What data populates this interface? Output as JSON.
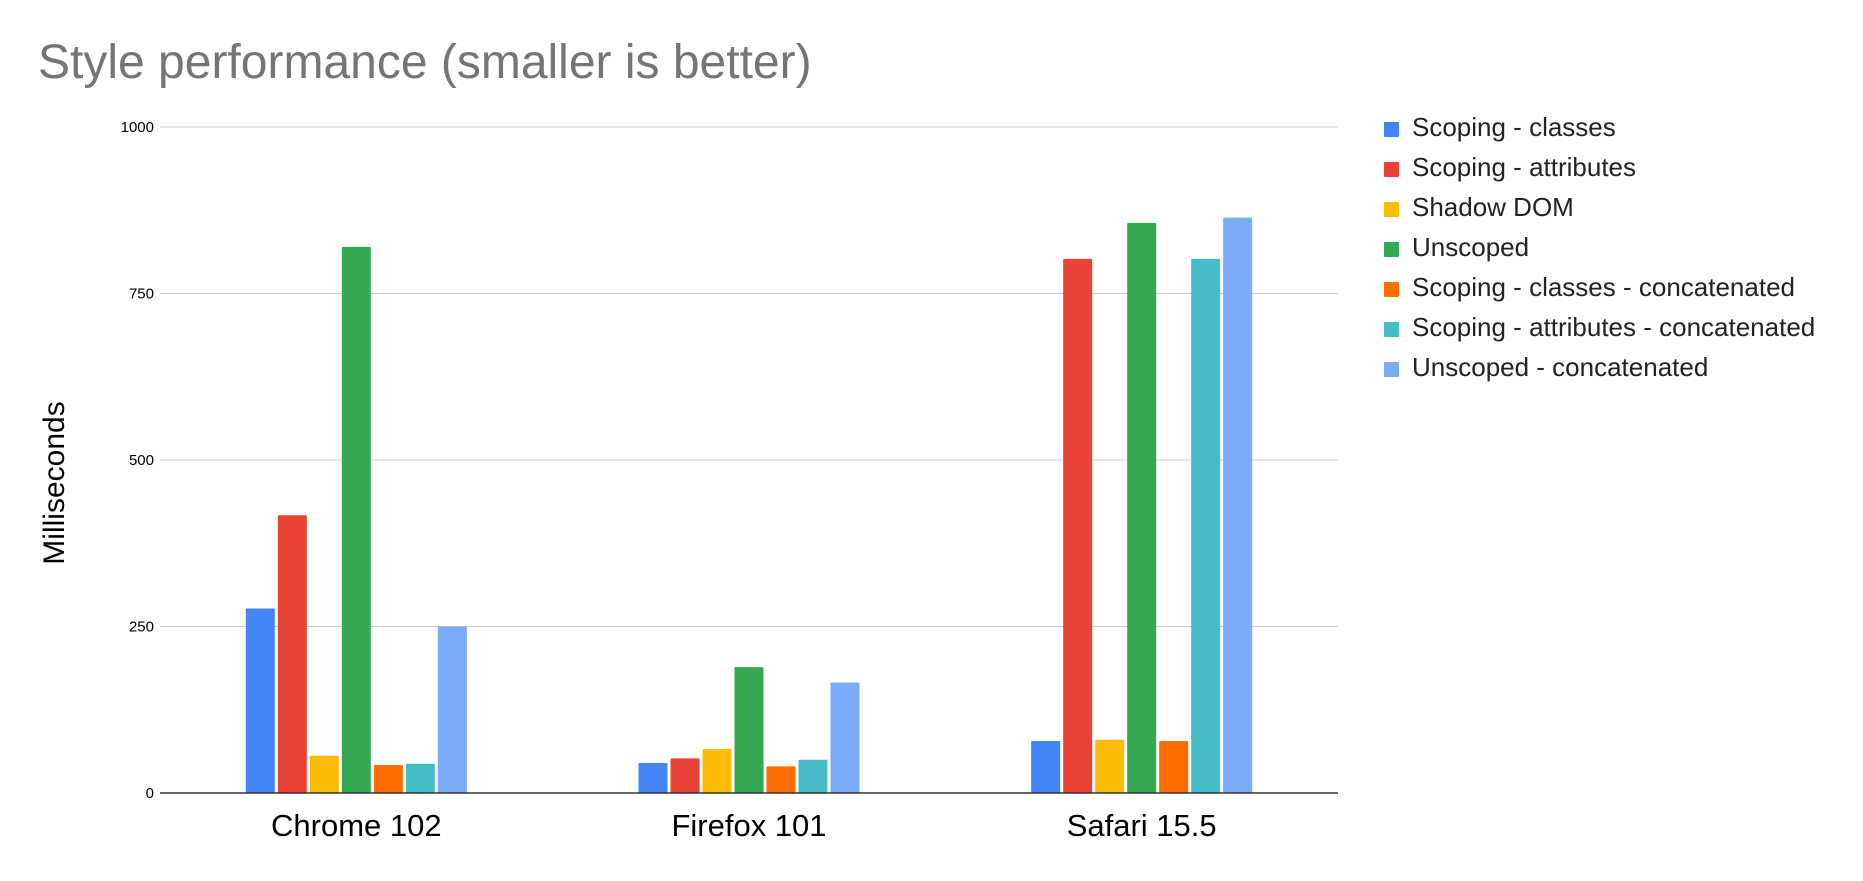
{
  "chart_data": {
    "type": "bar",
    "title": "Style performance (smaller is better)",
    "xlabel": "",
    "ylabel": "Milliseconds",
    "ylim": [
      0,
      1000
    ],
    "yticks": [
      0,
      250,
      500,
      750,
      1000
    ],
    "grid": true,
    "legend_position": "right",
    "categories": [
      "Chrome 102",
      "Firefox 101",
      "Safari 15.5"
    ],
    "series": [
      {
        "name": "Scoping - classes",
        "color": "#4285F4",
        "values": [
          277,
          45,
          78
        ]
      },
      {
        "name": "Scoping - attributes",
        "color": "#EA4335",
        "values": [
          417,
          52,
          802
        ]
      },
      {
        "name": "Shadow DOM",
        "color": "#FBBC04",
        "values": [
          56,
          66,
          80
        ]
      },
      {
        "name": "Unscoped",
        "color": "#34A853",
        "values": [
          820,
          189,
          856
        ]
      },
      {
        "name": "Scoping - classes - concatenated",
        "color": "#FF6D01",
        "values": [
          42,
          40,
          78
        ]
      },
      {
        "name": "Scoping - attributes - concatenated",
        "color": "#46BDC6",
        "values": [
          44,
          50,
          802
        ]
      },
      {
        "name": "Unscoped - concatenated",
        "color": "#7BAAF7",
        "values": [
          250,
          166,
          864
        ]
      }
    ]
  },
  "colors": {
    "title": "#757575",
    "axis_text": "#000000",
    "gridline": "#cccccc",
    "baseline": "#333333"
  }
}
